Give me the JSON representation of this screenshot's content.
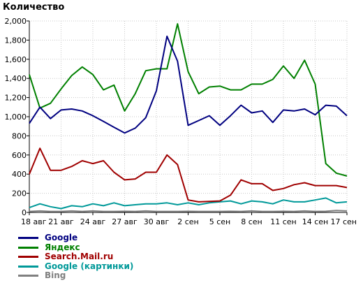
{
  "chart_data": {
    "type": "line",
    "title": "Количество",
    "xlabel": "",
    "ylabel": "",
    "ylim": [
      0,
      2000
    ],
    "yticks": [
      0,
      200,
      400,
      600,
      800,
      1000,
      1200,
      1400,
      1600,
      1800,
      2000
    ],
    "ytick_labels": [
      "0",
      "200",
      "400",
      "600",
      "800",
      "1,000",
      "1,200",
      "1,400",
      "1,600",
      "1,800",
      "2,000"
    ],
    "x": [
      "18 авг",
      "19 авг",
      "20 авг",
      "21 авг",
      "22 авг",
      "23 авг",
      "24 авг",
      "25 авг",
      "26 авг",
      "27 авг",
      "28 авг",
      "29 авг",
      "30 авг",
      "31 авг",
      "1 сен",
      "2 сен",
      "3 сен",
      "4 сен",
      "5 сен",
      "6 сен",
      "7 сен",
      "8 сен",
      "9 сен",
      "10 сен",
      "11 сен",
      "12 сен",
      "13 сен",
      "14 сен",
      "15 сен",
      "16 сен",
      "17 сен"
    ],
    "xtick_labels": [
      "18 авг",
      "21 авг",
      "24 авг",
      "27 авг",
      "30 авг",
      "2 сен",
      "5 сен",
      "8 сен",
      "11 сен",
      "14 сен",
      "17 сен"
    ],
    "xtick_every": 3,
    "grid": true,
    "legend_position": "bottom-left",
    "series": [
      {
        "name": "Google",
        "color": "#000080",
        "values": [
          930,
          1100,
          980,
          1070,
          1080,
          1060,
          1010,
          950,
          890,
          830,
          880,
          990,
          1270,
          1840,
          1580,
          910,
          960,
          1010,
          910,
          1010,
          1120,
          1040,
          1060,
          940,
          1070,
          1060,
          1080,
          1020,
          1120,
          1110,
          1010
        ]
      },
      {
        "name": "Яндекс",
        "color": "#008000",
        "values": [
          1440,
          1090,
          1140,
          1290,
          1430,
          1520,
          1440,
          1280,
          1330,
          1060,
          1240,
          1480,
          1500,
          1500,
          1970,
          1470,
          1240,
          1310,
          1320,
          1280,
          1280,
          1340,
          1340,
          1390,
          1530,
          1400,
          1590,
          1340,
          510,
          410,
          380
        ]
      },
      {
        "name": "Search.Mail.ru",
        "color": "#a00000",
        "values": [
          400,
          670,
          440,
          440,
          480,
          540,
          510,
          540,
          420,
          340,
          350,
          420,
          420,
          600,
          500,
          130,
          110,
          115,
          120,
          180,
          340,
          300,
          300,
          230,
          250,
          290,
          310,
          280,
          280,
          280,
          260
        ]
      },
      {
        "name": "Google (картинки)",
        "color": "#009999",
        "values": [
          50,
          90,
          60,
          40,
          70,
          60,
          90,
          70,
          100,
          70,
          80,
          90,
          90,
          100,
          80,
          100,
          80,
          100,
          110,
          120,
          90,
          120,
          110,
          90,
          130,
          110,
          110,
          130,
          150,
          100,
          110
        ]
      },
      {
        "name": "Bing",
        "color": "#808080",
        "values": [
          10,
          15,
          10,
          10,
          15,
          10,
          15,
          10,
          10,
          12,
          10,
          15,
          10,
          10,
          10,
          12,
          10,
          10,
          10,
          12,
          10,
          15,
          10,
          10,
          12,
          10,
          15,
          10,
          12,
          20,
          15
        ]
      }
    ]
  }
}
